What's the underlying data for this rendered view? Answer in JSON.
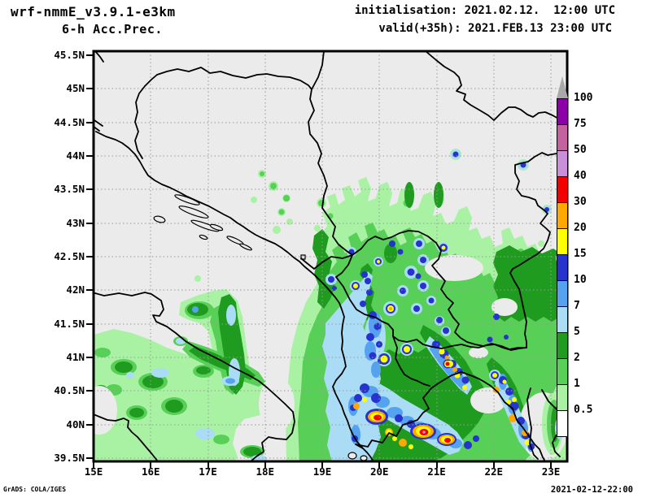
{
  "header": {
    "model_title": "wrf-nmmE_v3.9.1-e3km",
    "product_title": "6-h Acc.Prec.",
    "initialisation": "initialisation: 2021.02.12.  12:00 UTC",
    "valid": "valid(+35h): 2021.FEB.13 23:00 UTC"
  },
  "axes": {
    "lat_labels": [
      "45.5N",
      "45N",
      "44.5N",
      "44N",
      "43.5N",
      "43N",
      "42.5N",
      "42N",
      "41.5N",
      "41N",
      "40.5N",
      "40N",
      "39.5N"
    ],
    "lon_labels": [
      "15E",
      "16E",
      "17E",
      "18E",
      "19E",
      "20E",
      "21E",
      "22E",
      "23E"
    ]
  },
  "colorbar": {
    "title": "precip-scale-mm",
    "segments_bottom_to_top": [
      {
        "label": "0.5",
        "color": "#ffffff"
      },
      {
        "label": "1",
        "color": "#a9f2a3"
      },
      {
        "label": "2",
        "color": "#58d058"
      },
      {
        "label": "5",
        "color": "#1f9b1f"
      },
      {
        "label": "7",
        "color": "#aadcf6"
      },
      {
        "label": "10",
        "color": "#55a2f0"
      },
      {
        "label": "15",
        "color": "#2633cc"
      },
      {
        "label": "20",
        "color": "#ffff00"
      },
      {
        "label": "30",
        "color": "#ffa800"
      },
      {
        "label": "40",
        "color": "#f50000"
      },
      {
        "label": "50",
        "color": "#c98fd8"
      },
      {
        "label": "75",
        "color": "#c4619f"
      },
      {
        "label": "100",
        "color": "#8c00a8"
      }
    ],
    "overflow_arrow_color": "#a9a9a9"
  },
  "map_colors": {
    "background": "#ebebeb",
    "grid": "#9a9a9a",
    "outline": "#000000"
  },
  "footer": {
    "credit": "GrADS: COLA/IGES",
    "timestamp": "2021-02-12-22:00"
  }
}
